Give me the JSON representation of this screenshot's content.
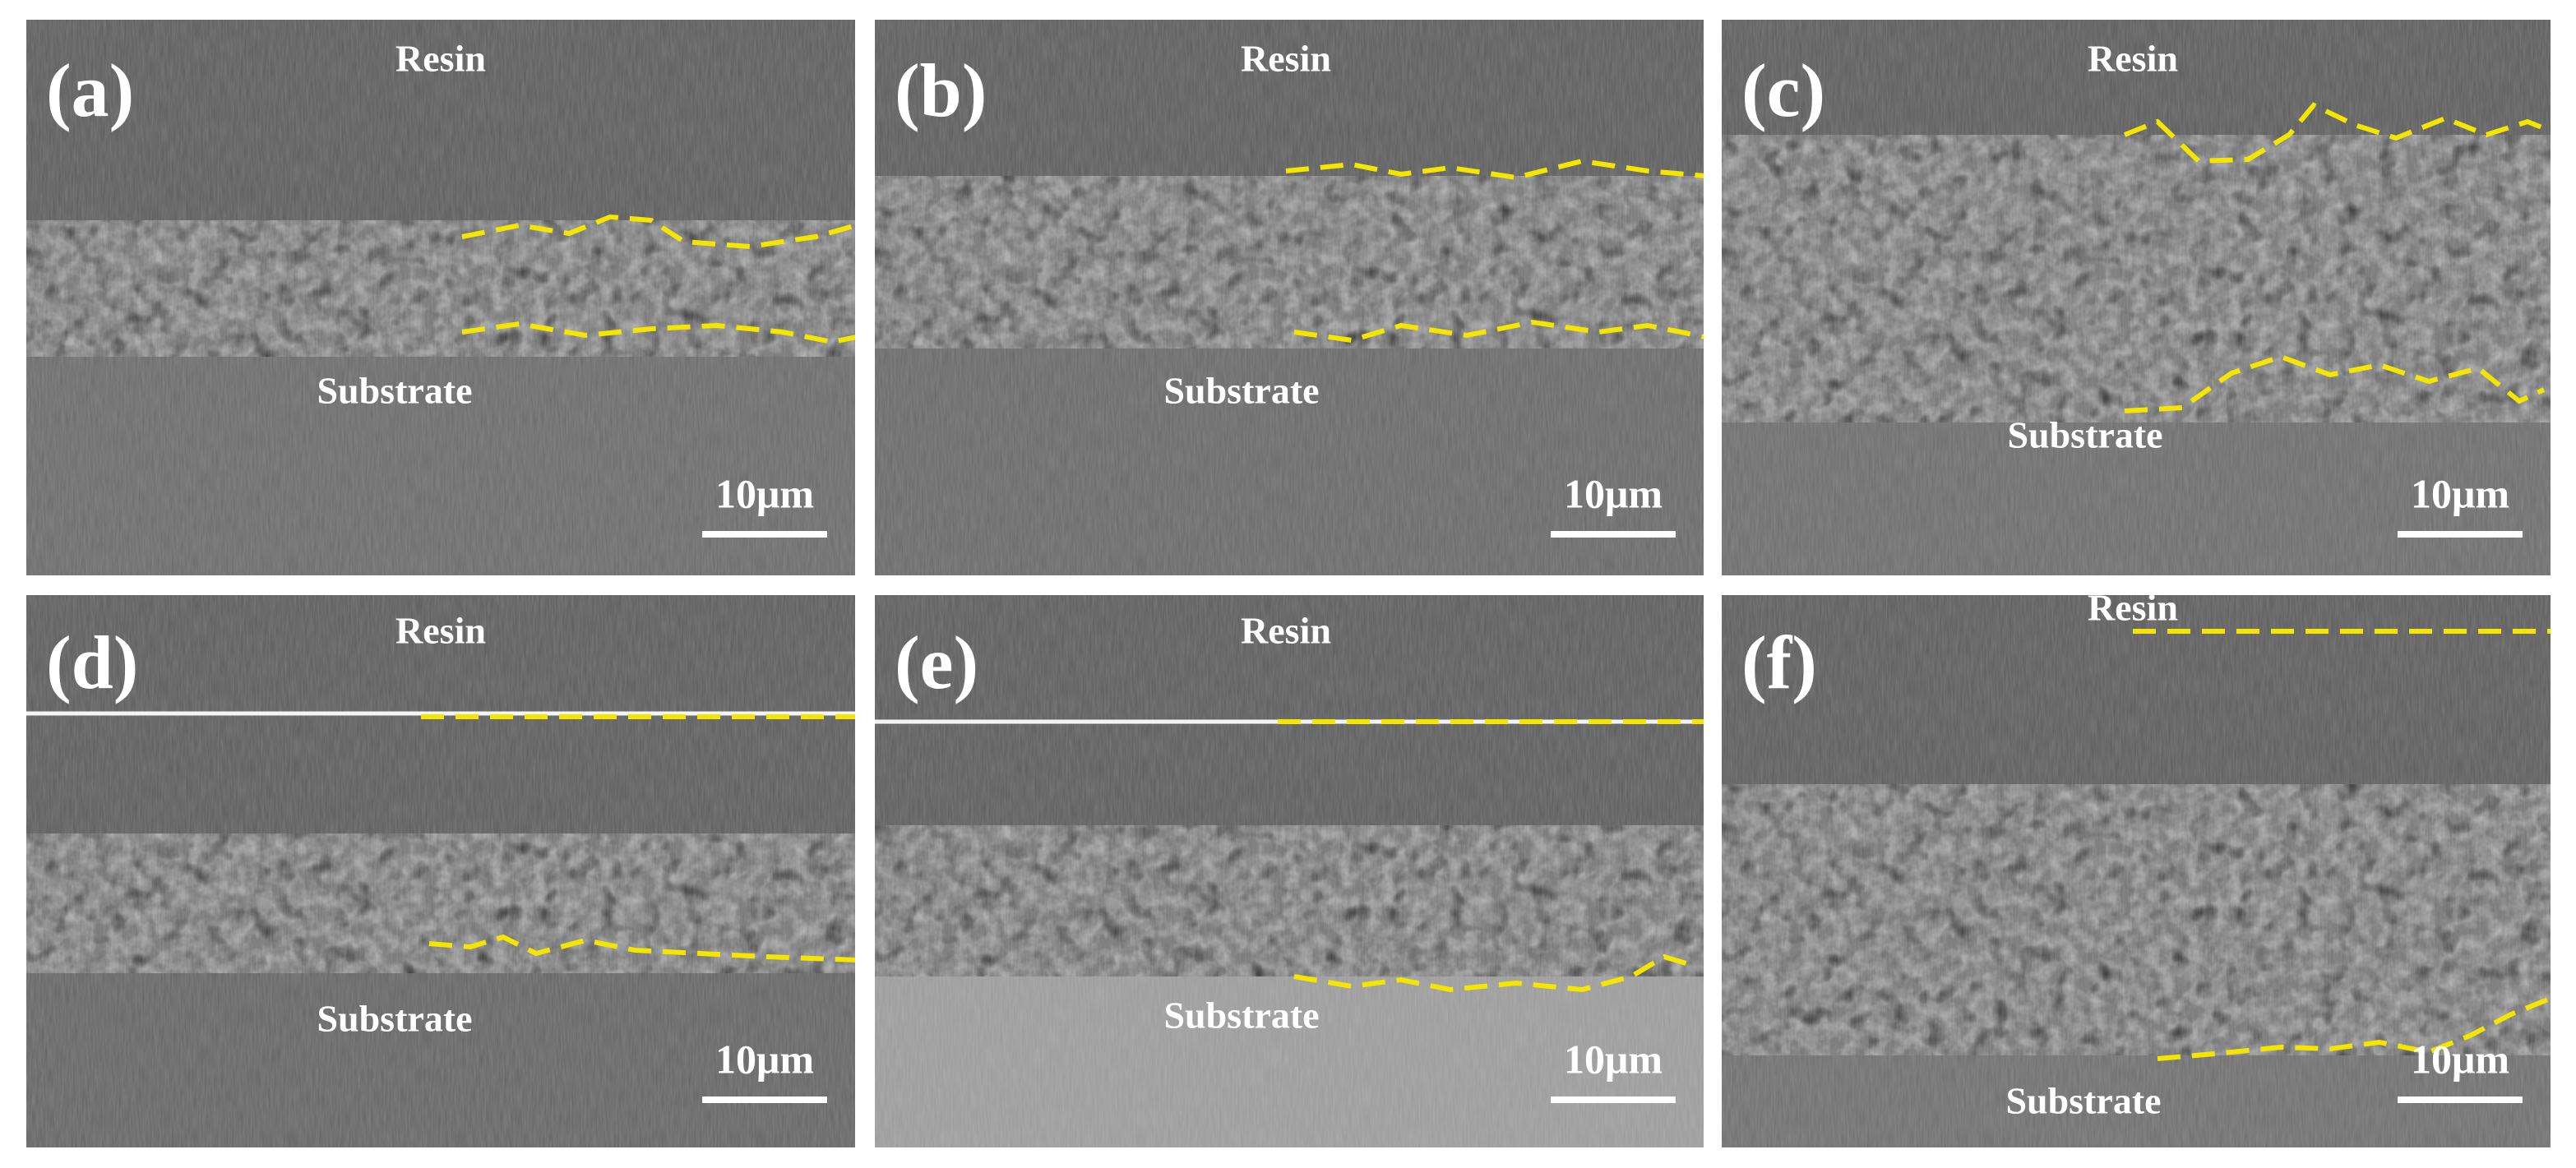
{
  "panels": [
    {
      "label": "(a)",
      "resin": "Resin",
      "substrate": "Substrate",
      "scale_bar": "10μm"
    },
    {
      "label": "(b)",
      "resin": "Resin",
      "substrate": "Substrate",
      "scale_bar": "10μm"
    },
    {
      "label": "(c)",
      "resin": "Resin",
      "substrate": "Substrate",
      "scale_bar": "10μm"
    },
    {
      "label": "(d)",
      "resin": "Resin",
      "substrate": "Substrate",
      "scale_bar": "10μm"
    },
    {
      "label": "(e)",
      "resin": "Resin",
      "substrate": "Substrate",
      "scale_bar": "10μm"
    },
    {
      "label": "(f)",
      "resin": "Resin",
      "substrate": "Substrate",
      "scale_bar": "10μm"
    }
  ]
}
